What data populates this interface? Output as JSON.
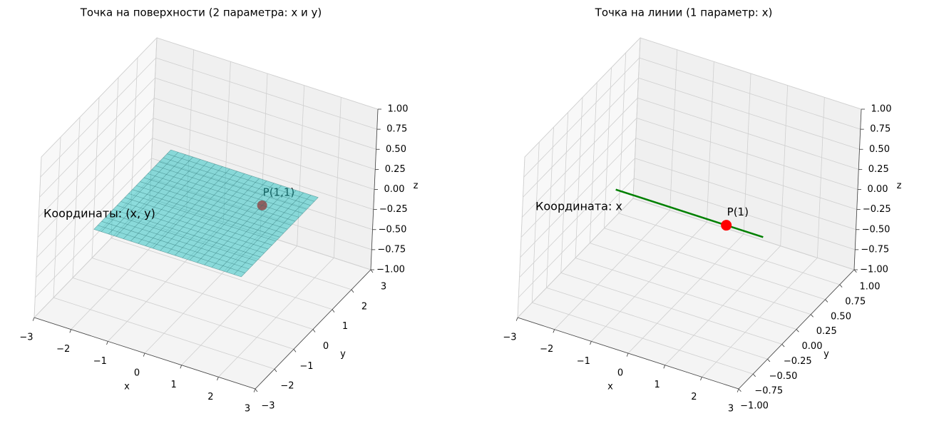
{
  "chart_data": [
    {
      "type": "surface3d",
      "title": "Точка на поверхности (2 параметра: x и y)",
      "xlabel": "x",
      "ylabel": "y",
      "zlabel": "z",
      "xlim": [
        -3,
        3
      ],
      "ylim": [
        -3,
        3
      ],
      "zlim": [
        -1,
        1
      ],
      "xticks": [
        {
          "value": -3,
          "label": "−3"
        },
        {
          "value": -2,
          "label": "−2"
        },
        {
          "value": -1,
          "label": "−1"
        },
        0,
        1,
        2,
        3
      ],
      "yticks": [
        {
          "value": -3,
          "label": "−3"
        },
        {
          "value": -2,
          "label": "−2"
        },
        {
          "value": -1,
          "label": "−1"
        },
        0,
        1,
        2,
        3
      ],
      "zticks": [
        {
          "value": -1,
          "label": "−1.00"
        },
        {
          "value": -0.75,
          "label": "−0.75"
        },
        {
          "value": -0.5,
          "label": "−0.50"
        },
        {
          "value": -0.25,
          "label": "−0.25"
        },
        {
          "value": 0,
          "label": "0.00"
        },
        0.25,
        {
          "value": 0.5,
          "label": "0.50"
        },
        0.75,
        {
          "value": 1,
          "label": "1.00"
        }
      ],
      "surface": {
        "x": [
          -2,
          -1.8,
          -1.6,
          -1.4,
          -1.2,
          -1,
          -0.8,
          -0.6,
          -0.4,
          -0.2,
          0,
          0.2,
          0.4,
          0.6,
          0.8,
          1,
          1.2,
          1.4,
          1.6,
          1.8,
          2
        ],
        "y": [
          -2,
          -1.8,
          -1.6,
          -1.4,
          -1.2,
          -1,
          -0.8,
          -0.6,
          -0.4,
          -0.2,
          0,
          0.2,
          0.4,
          0.6,
          0.8,
          1,
          1.2,
          1.4,
          1.6,
          1.8,
          2
        ],
        "z": 0,
        "color": "#20c0c0"
      },
      "point": {
        "x": 1,
        "y": 1,
        "z": 0,
        "label": "P(1,1)",
        "color": "red"
      },
      "annotation": {
        "text": "Координаты: (x, y)",
        "color": "blue"
      }
    },
    {
      "type": "line3d",
      "title": "Точка на линии (1 параметр: x)",
      "xlabel": "x",
      "ylabel": "y",
      "zlabel": "z",
      "xlim": [
        -3,
        3
      ],
      "ylim": [
        -1,
        1
      ],
      "zlim": [
        -1,
        1
      ],
      "xticks": [
        {
          "value": -3,
          "label": "−3"
        },
        {
          "value": -2,
          "label": "−2"
        },
        {
          "value": -1,
          "label": "−1"
        },
        0,
        1,
        2,
        3
      ],
      "yticks": [
        {
          "value": -1,
          "label": "−1.00"
        },
        {
          "value": -0.75,
          "label": "−0.75"
        },
        {
          "value": -0.5,
          "label": "−0.50"
        },
        {
          "value": -0.25,
          "label": "−0.25"
        },
        {
          "value": 0,
          "label": "0.00"
        },
        0.25,
        {
          "value": 0.5,
          "label": "0.50"
        },
        0.75,
        {
          "value": 1,
          "label": "1.00"
        }
      ],
      "zticks": [
        {
          "value": -1,
          "label": "−1.00"
        },
        {
          "value": -0.75,
          "label": "−0.75"
        },
        {
          "value": -0.5,
          "label": "−0.50"
        },
        {
          "value": -0.25,
          "label": "−0.25"
        },
        {
          "value": 0,
          "label": "0.00"
        },
        0.25,
        {
          "value": 0.5,
          "label": "0.50"
        },
        0.75,
        {
          "value": 1,
          "label": "1.00"
        }
      ],
      "line": {
        "x": [
          -2,
          2
        ],
        "y": [
          0,
          0
        ],
        "z": [
          0,
          0
        ],
        "color": "green"
      },
      "point": {
        "x": 1,
        "y": 0,
        "z": 0,
        "label": "P(1)",
        "color": "red"
      },
      "annotation": {
        "text": "Координата: x",
        "color": "blue"
      }
    }
  ]
}
